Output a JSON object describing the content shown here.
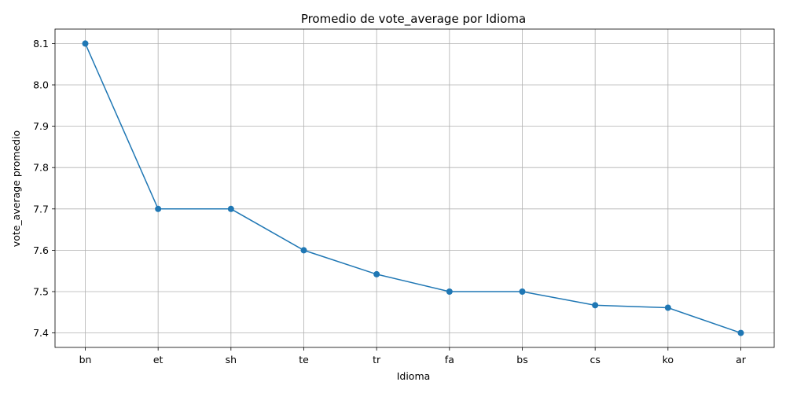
{
  "chart_data": {
    "type": "line",
    "title": "Promedio de vote_average por Idioma",
    "xlabel": "Idioma",
    "ylabel": "vote_average promedio",
    "categories": [
      "bn",
      "et",
      "sh",
      "te",
      "tr",
      "fa",
      "bs",
      "cs",
      "ko",
      "ar"
    ],
    "series": [
      {
        "values": [
          8.1,
          7.7,
          7.7,
          7.6,
          7.542,
          7.5,
          7.5,
          7.467,
          7.461,
          7.4
        ]
      }
    ],
    "yticks": [
      "7.4",
      "7.5",
      "7.6",
      "7.7",
      "7.8",
      "7.9",
      "8.0",
      "8.1"
    ],
    "ylim": [
      7.365,
      8.135
    ],
    "grid": true,
    "marker": "circle",
    "line_color": "#1f77b4"
  }
}
